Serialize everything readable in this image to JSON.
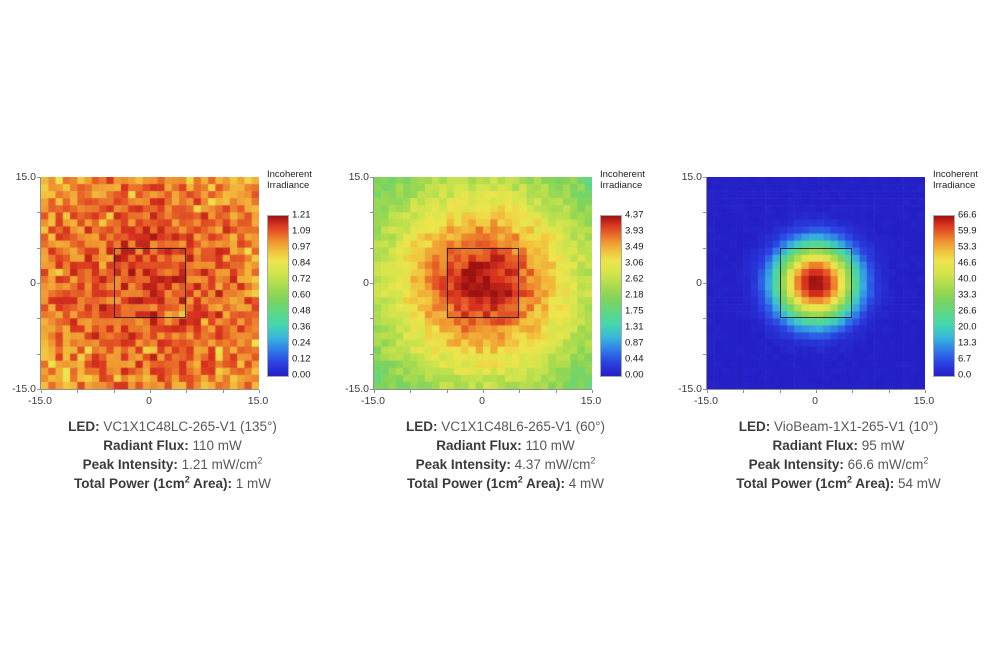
{
  "page": {
    "background": "#ffffff"
  },
  "colormap": {
    "name": "rainbow",
    "stops": [
      [
        0.0,
        "#2420C6"
      ],
      [
        0.08,
        "#2B3FE0"
      ],
      [
        0.16,
        "#2E7BE8"
      ],
      [
        0.24,
        "#38B6DC"
      ],
      [
        0.32,
        "#45D6AE"
      ],
      [
        0.4,
        "#5ED785"
      ],
      [
        0.48,
        "#7FD35A"
      ],
      [
        0.56,
        "#A8DB4E"
      ],
      [
        0.64,
        "#D3E44C"
      ],
      [
        0.72,
        "#EEE44C"
      ],
      [
        0.78,
        "#F2C03C"
      ],
      [
        0.84,
        "#EF9430"
      ],
      [
        0.9,
        "#E55A26"
      ],
      [
        0.95,
        "#D6301E"
      ],
      [
        1.0,
        "#9E1212"
      ]
    ]
  },
  "figure": {
    "panels": [
      {
        "colorbar_title_line1": "Incoherent",
        "colorbar_title_line2": "Irradiance",
        "colorbar_ticks": [
          "1.21",
          "1.09",
          "0.97",
          "0.84",
          "0.72",
          "0.60",
          "0.48",
          "0.36",
          "0.24",
          "0.12",
          "0.00"
        ],
        "y_ticks": [
          "15.0",
          "0",
          "-15.0"
        ],
        "x_ticks": [
          "-15.0",
          "0",
          "15.0"
        ],
        "caption": {
          "led_label": "LED:",
          "led_value": "VC1X1C48LC-265-V1 (135°)",
          "flux_label": "Radiant Flux:",
          "flux_value": "110 mW",
          "peak_label": "Peak Intensity:",
          "peak_value": "1.21 mW/cm",
          "peak_sup": "2",
          "power_label_pre": "Total Power (1cm",
          "power_sup": "2",
          "power_label_post": " Area):",
          "power_value": "1 mW"
        }
      },
      {
        "colorbar_title_line1": "Incoherent",
        "colorbar_title_line2": "Irradiance",
        "colorbar_ticks": [
          "4.37",
          "3.93",
          "3.49",
          "3.06",
          "2.62",
          "2.18",
          "1.75",
          "1.31",
          "0.87",
          "0.44",
          "0.00"
        ],
        "y_ticks": [
          "15.0",
          "0",
          "-15.0"
        ],
        "x_ticks": [
          "-15.0",
          "0",
          "15.0"
        ],
        "caption": {
          "led_label": "LED:",
          "led_value": "VC1X1C48L6-265-V1 (60°)",
          "flux_label": "Radiant Flux:",
          "flux_value": "110 mW",
          "peak_label": "Peak Intensity:",
          "peak_value": "4.37 mW/cm",
          "peak_sup": "2",
          "power_label_pre": "Total Power (1cm",
          "power_sup": "2",
          "power_label_post": " Area):",
          "power_value": "4 mW"
        }
      },
      {
        "colorbar_title_line1": "Incoherent",
        "colorbar_title_line2": "Irradiance",
        "colorbar_ticks": [
          "66.6",
          "59.9",
          "53.3",
          "46.6",
          "40.0",
          "33.3",
          "26.6",
          "20.0",
          "13.3",
          "6.7",
          "0.0"
        ],
        "y_ticks": [
          "15.0",
          "0",
          "-15.0"
        ],
        "x_ticks": [
          "-15.0",
          "0",
          "15.0"
        ],
        "caption": {
          "led_label": "LED:",
          "led_value": "VioBeam-1X1-265-V1 (10°)",
          "flux_label": "Radiant Flux:",
          "flux_value": "95 mW",
          "peak_label": "Peak Intensity:",
          "peak_value": "66.6 mW/cm",
          "peak_sup": "2",
          "power_label_pre": "Total Power (1cm",
          "power_sup": "2",
          "power_label_post": " Area):",
          "power_value": "54 mW"
        }
      }
    ]
  },
  "chart_data": [
    {
      "type": "heatmap",
      "title": "Incoherent Irradiance",
      "units": "mW/cm2",
      "led": "VC1X1C48LC-265-V1",
      "beam_angle_deg": 135,
      "x_range_mm": [
        -15,
        15
      ],
      "y_range_mm": [
        -15,
        15
      ],
      "x_tick_values": [
        -15,
        0,
        15
      ],
      "y_tick_values": [
        15,
        0,
        -15
      ],
      "minor_tick_values_mm": [
        -15,
        -10,
        -5,
        0,
        5,
        10,
        15
      ],
      "grid": [
        30,
        30
      ],
      "vmin": 0.0,
      "vmax": 1.21,
      "colorbar_tick_values": [
        1.21,
        1.09,
        0.97,
        0.84,
        0.72,
        0.6,
        0.48,
        0.36,
        0.24,
        0.12,
        0.0
      ],
      "overlay_square_mm": {
        "x": [
          -5,
          5
        ],
        "y": [
          -5,
          5
        ]
      },
      "radiant_flux_mW": 110,
      "peak_intensity_mW_per_cm2": 1.21,
      "total_power_1cm2_mW": 1,
      "distribution": {
        "model": "flat-noise",
        "base_frac": 0.92,
        "edge_drop_frac": 0.1,
        "edge_power": 1.8,
        "noise_frac": 0.16,
        "sparkle_prob": 0.07,
        "sparkle_drop": 0.07,
        "seed": 12
      }
    },
    {
      "type": "heatmap",
      "title": "Incoherent Irradiance",
      "units": "mW/cm2",
      "led": "VC1X1C48L6-265-V1",
      "beam_angle_deg": 60,
      "x_range_mm": [
        -15,
        15
      ],
      "y_range_mm": [
        -15,
        15
      ],
      "x_tick_values": [
        -15,
        0,
        15
      ],
      "y_tick_values": [
        15,
        0,
        -15
      ],
      "minor_tick_values_mm": [
        -15,
        -10,
        -5,
        0,
        5,
        10,
        15
      ],
      "grid": [
        30,
        30
      ],
      "vmin": 0.0,
      "vmax": 4.37,
      "colorbar_tick_values": [
        4.37,
        3.93,
        3.49,
        3.06,
        2.62,
        2.18,
        1.75,
        1.31,
        0.87,
        0.44,
        0.0
      ],
      "overlay_square_mm": {
        "x": [
          -5,
          5
        ],
        "y": [
          -5,
          5
        ]
      },
      "radiant_flux_mW": 110,
      "peak_intensity_mW_per_cm2": 4.37,
      "total_power_1cm2_mW": 4,
      "distribution": {
        "model": "gaussian-noise",
        "floor_frac": 0.3,
        "amp_frac": 0.7,
        "radius_mm": 16,
        "shape_power": 1.7,
        "noise_frac": 0.11,
        "seed": 5
      }
    },
    {
      "type": "heatmap",
      "title": "Incoherent Irradiance",
      "units": "mW/cm2",
      "led": "VioBeam-1X1-265-V1",
      "beam_angle_deg": 10,
      "x_range_mm": [
        -15,
        15
      ],
      "y_range_mm": [
        -15,
        15
      ],
      "x_tick_values": [
        -15,
        0,
        15
      ],
      "y_tick_values": [
        15,
        0,
        -15
      ],
      "minor_tick_values_mm": [
        -15,
        -10,
        -5,
        0,
        5,
        10,
        15
      ],
      "grid": [
        30,
        30
      ],
      "vmin": 0.0,
      "vmax": 66.6,
      "colorbar_tick_values": [
        66.6,
        59.9,
        53.3,
        46.6,
        40.0,
        33.3,
        26.6,
        20.0,
        13.3,
        6.7,
        0.0
      ],
      "overlay_square_mm": {
        "x": [
          -5,
          5
        ],
        "y": [
          -5,
          5
        ]
      },
      "radiant_flux_mW": 95,
      "peak_intensity_mW_per_cm2": 66.6,
      "total_power_1cm2_mW": 54,
      "distribution": {
        "model": "gaussian-smooth",
        "radius_mm": 5.5,
        "shape_power": 2.4,
        "noise_frac": 0.02,
        "seed": 9
      }
    }
  ]
}
